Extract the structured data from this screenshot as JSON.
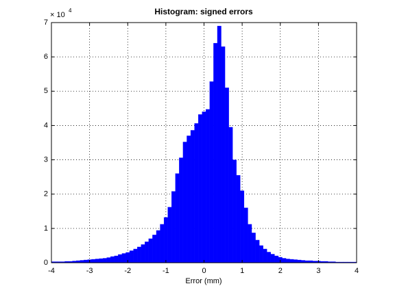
{
  "chart_data": {
    "type": "histogram",
    "title": "Histogram: signed errors",
    "xlabel": "Error (mm)",
    "y_multiplier_base": "× 10",
    "y_multiplier_exponent": "4",
    "bins": [
      -4.05,
      -3.95,
      -3.85,
      -3.75,
      -3.65,
      -3.55,
      -3.45,
      -3.35,
      -3.25,
      -3.15,
      -3.05,
      -2.95,
      -2.85,
      -2.75,
      -2.65,
      -2.55,
      -2.45,
      -2.35,
      -2.25,
      -2.15,
      -2.05,
      -1.95,
      -1.85,
      -1.75,
      -1.65,
      -1.55,
      -1.45,
      -1.35,
      -1.25,
      -1.15,
      -1.05,
      -0.95,
      -0.85,
      -0.75,
      -0.65,
      -0.55,
      -0.45,
      -0.35,
      -0.25,
      -0.15,
      -0.05,
      0.05,
      0.15,
      0.25,
      0.35,
      0.45,
      0.55,
      0.65,
      0.75,
      0.85,
      0.95,
      1.05,
      1.15,
      1.25,
      1.35,
      1.45,
      1.55,
      1.65,
      1.75,
      1.85,
      1.95,
      2.05,
      2.15,
      2.25,
      2.35,
      2.45,
      2.55,
      2.65,
      2.75,
      2.85,
      2.95,
      3.05,
      3.15,
      3.25,
      3.35,
      3.45,
      3.55,
      3.65,
      3.75,
      3.85,
      3.95,
      4.05
    ],
    "values": [
      0.03,
      0.03,
      0.03,
      0.03,
      0.04,
      0.04,
      0.05,
      0.06,
      0.07,
      0.08,
      0.09,
      0.1,
      0.11,
      0.12,
      0.13,
      0.15,
      0.18,
      0.2,
      0.24,
      0.27,
      0.3,
      0.35,
      0.4,
      0.46,
      0.53,
      0.61,
      0.7,
      0.81,
      0.94,
      1.12,
      1.32,
      1.62,
      2.08,
      2.6,
      3.06,
      3.52,
      3.7,
      3.86,
      4.06,
      4.32,
      4.4,
      4.47,
      5.28,
      6.4,
      6.9,
      6.3,
      5.1,
      3.95,
      3.0,
      2.55,
      2.1,
      1.6,
      1.12,
      0.87,
      0.66,
      0.5,
      0.4,
      0.31,
      0.25,
      0.2,
      0.16,
      0.13,
      0.11,
      0.1,
      0.09,
      0.08,
      0.07,
      0.06,
      0.06,
      0.05,
      0.05,
      0.04,
      0.04,
      0.03,
      0.03,
      0.02,
      0.02,
      0.02,
      0.02,
      0.02,
      0.02
    ],
    "color": "#0000ff",
    "xlim": [
      -4,
      4
    ],
    "xticks": [
      -4,
      -3,
      -2,
      -1,
      0,
      1,
      2,
      3,
      4
    ],
    "ylim": [
      0,
      7
    ],
    "yticks": [
      0,
      1,
      2,
      3,
      4,
      5,
      6,
      7
    ],
    "grid": true
  }
}
